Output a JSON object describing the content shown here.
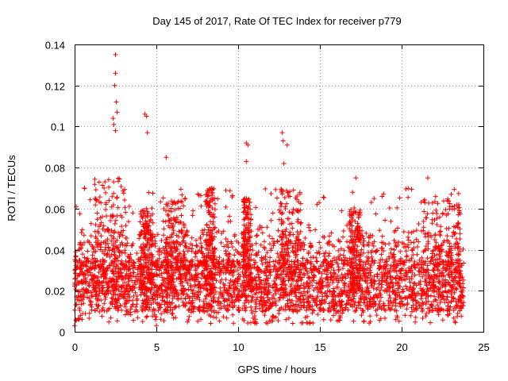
{
  "chart_data": {
    "type": "scatter",
    "title": "Day 145 of 2017, Rate Of TEC Index for receiver p779",
    "xlabel": "GPS time / hours",
    "ylabel": "ROTI / TECUs",
    "xlim": [
      0,
      25
    ],
    "ylim": [
      0,
      0.14
    ],
    "xticks": [
      0,
      5,
      10,
      15,
      20,
      25
    ],
    "yticks": [
      0,
      0.02,
      0.04,
      0.06,
      0.08,
      0.1,
      0.12,
      0.14
    ],
    "xtick_labels": [
      "0",
      "5",
      "10",
      "15",
      "20",
      "25"
    ],
    "ytick_labels": [
      "0",
      "0.02",
      "0.04",
      "0.06",
      "0.08",
      "0.1",
      "0.12",
      "0.14"
    ],
    "grid": true,
    "marker": "plus",
    "marker_color": "#ff0000",
    "series": [
      {
        "name": "ROTI p779",
        "x_range": [
          0,
          23.8
        ],
        "baseline_band": [
          0.01,
          0.035
        ],
        "notable_points": [
          {
            "x": 0.6,
            "y": 0.07
          },
          {
            "x": 2.5,
            "y": 0.135
          },
          {
            "x": 2.5,
            "y": 0.126
          },
          {
            "x": 2.45,
            "y": 0.12
          },
          {
            "x": 2.55,
            "y": 0.112
          },
          {
            "x": 2.6,
            "y": 0.107
          },
          {
            "x": 2.35,
            "y": 0.104
          },
          {
            "x": 2.4,
            "y": 0.101
          },
          {
            "x": 2.5,
            "y": 0.098
          },
          {
            "x": 4.3,
            "y": 0.106
          },
          {
            "x": 4.4,
            "y": 0.105
          },
          {
            "x": 4.45,
            "y": 0.097
          },
          {
            "x": 5.6,
            "y": 0.085
          },
          {
            "x": 10.5,
            "y": 0.092
          },
          {
            "x": 10.6,
            "y": 0.091
          },
          {
            "x": 10.5,
            "y": 0.083
          },
          {
            "x": 12.7,
            "y": 0.097
          },
          {
            "x": 12.75,
            "y": 0.093
          },
          {
            "x": 13.0,
            "y": 0.091
          },
          {
            "x": 12.8,
            "y": 0.082
          },
          {
            "x": 17.2,
            "y": 0.075
          },
          {
            "x": 21.6,
            "y": 0.075
          },
          {
            "x": 0.1,
            "y": 0.061
          },
          {
            "x": 0.0,
            "y": 0.003
          },
          {
            "x": 5.0,
            "y": 0.003
          }
        ]
      }
    ]
  }
}
